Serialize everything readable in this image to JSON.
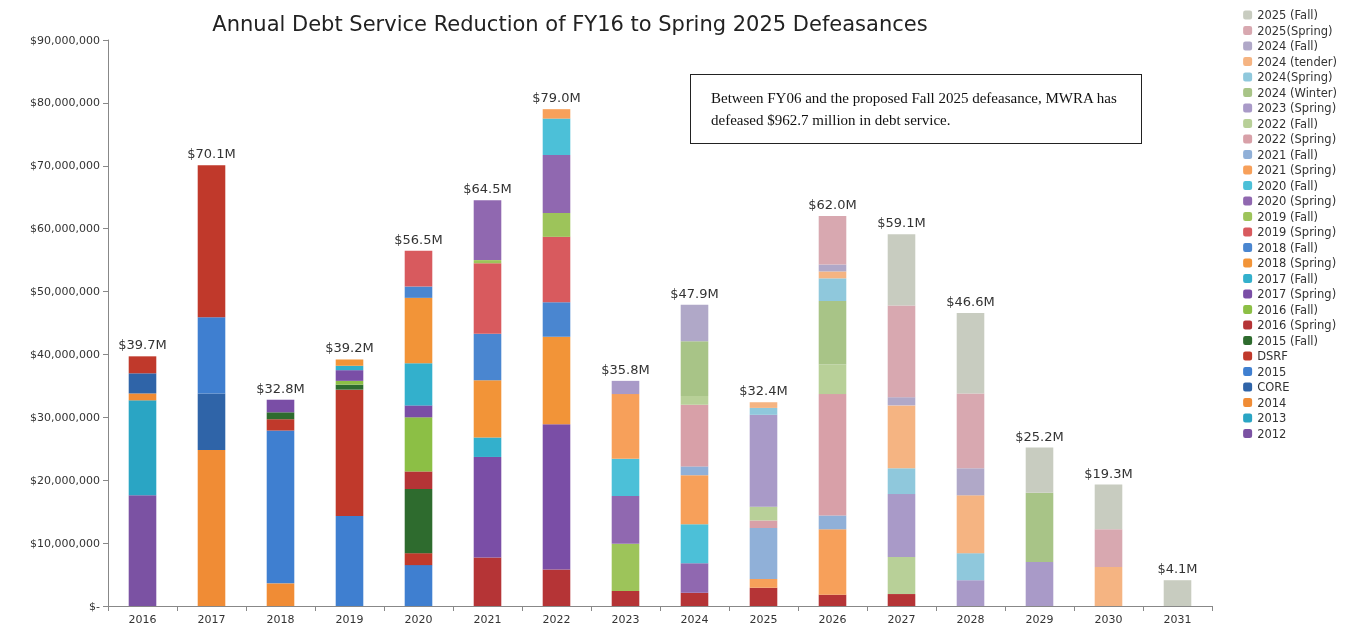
{
  "chart_data": {
    "type": "bar",
    "title": "Annual Debt Service Reduction of FY16 to Spring 2025 Defeasances",
    "categories": [
      "2016",
      "2017",
      "2018",
      "2019",
      "2020",
      "2021",
      "2022",
      "2023",
      "2024",
      "2025",
      "2026",
      "2027",
      "2028",
      "2029",
      "2030",
      "2031"
    ],
    "stacked": true,
    "legend": "right",
    "ylim": [
      0,
      90000000
    ],
    "yticks": [
      {
        "value": 0,
        "label": "$-"
      },
      {
        "value": 10000000,
        "label": "$10,000,000"
      },
      {
        "value": 20000000,
        "label": "$20,000,000"
      },
      {
        "value": 30000000,
        "label": "$30,000,000"
      },
      {
        "value": 40000000,
        "label": "$40,000,000"
      },
      {
        "value": 50000000,
        "label": "$50,000,000"
      },
      {
        "value": 60000000,
        "label": "$60,000,000"
      },
      {
        "value": 70000000,
        "label": "$70,000,000"
      },
      {
        "value": 80000000,
        "label": "$80,000,000"
      },
      {
        "value": 90000000,
        "label": "$90,000,000"
      }
    ],
    "totals": [
      "$39.7M",
      "$70.1M",
      "$32.8M",
      "$39.2M",
      "$56.5M",
      "$64.5M",
      "$79.0M",
      "$35.8M",
      "$47.9M",
      "$32.4M",
      "$62.0M",
      "$59.1M",
      "$46.6M",
      "$25.2M",
      "$19.3M",
      "$4.1M"
    ],
    "annotations": [
      "Between FY06 and  the proposed Fall 2025 defeasance, MWRA  has defeased $962.7 million in debt service."
    ],
    "series": [
      {
        "name": "2012",
        "color": "#7b52a3",
        "values": [
          17600000,
          null,
          null,
          null,
          null,
          null,
          null,
          null,
          null,
          null,
          null,
          null,
          null,
          null,
          null,
          null
        ]
      },
      {
        "name": "2013",
        "color": "#2aa5c4",
        "values": [
          15100000,
          null,
          null,
          null,
          null,
          null,
          null,
          null,
          null,
          null,
          null,
          null,
          null,
          null,
          null,
          null
        ]
      },
      {
        "name": "2014",
        "color": "#f08c35",
        "values": [
          1100000,
          24800000,
          3600000,
          null,
          null,
          null,
          null,
          null,
          null,
          null,
          null,
          null,
          null,
          null,
          null,
          null
        ]
      },
      {
        "name": "CORE",
        "color": "#2f64a8",
        "values": [
          3200000,
          9000000,
          null,
          null,
          null,
          null,
          null,
          null,
          null,
          null,
          null,
          null,
          null,
          null,
          null,
          null
        ]
      },
      {
        "name": "2015",
        "color": "#3f7fd0",
        "values": [
          null,
          12100000,
          24300000,
          14300000,
          6500000,
          null,
          null,
          null,
          null,
          null,
          null,
          null,
          null,
          null,
          null,
          null
        ]
      },
      {
        "name": "DSRF",
        "color": "#c0392b",
        "values": [
          2700000,
          24200000,
          1800000,
          20100000,
          1900000,
          null,
          null,
          null,
          null,
          null,
          null,
          null,
          null,
          null,
          null,
          null
        ]
      },
      {
        "name": "2015 (Fall)",
        "color": "#2e6b2e",
        "values": [
          null,
          null,
          1100000,
          800000,
          10200000,
          null,
          null,
          null,
          null,
          null,
          null,
          null,
          null,
          null,
          null,
          null
        ]
      },
      {
        "name": "2016 (Spring)",
        "color": "#b53436",
        "values": [
          null,
          null,
          null,
          null,
          2800000,
          7700000,
          5800000,
          2400000,
          2100000,
          2900000,
          1800000,
          1900000,
          null,
          null,
          null,
          null
        ]
      },
      {
        "name": "2016 (Fall)",
        "color": "#8cbf45",
        "values": [
          null,
          null,
          null,
          600000,
          8600000,
          null,
          null,
          null,
          null,
          null,
          null,
          null,
          null,
          null,
          null,
          null
        ]
      },
      {
        "name": "2017 (Spring)",
        "color": "#7a4ea6",
        "values": [
          null,
          null,
          2000000,
          1700000,
          1900000,
          16000000,
          23100000,
          null,
          null,
          null,
          null,
          null,
          null,
          null,
          null,
          null
        ]
      },
      {
        "name": "2017 (Fall)",
        "color": "#33b0cc",
        "values": [
          null,
          null,
          null,
          700000,
          6700000,
          3100000,
          null,
          null,
          null,
          null,
          null,
          null,
          null,
          null,
          null,
          null
        ]
      },
      {
        "name": "2018 (Spring)",
        "color": "#f29438",
        "values": [
          null,
          null,
          null,
          1000000,
          10400000,
          9100000,
          13900000,
          null,
          null,
          null,
          null,
          null,
          null,
          null,
          null,
          null
        ]
      },
      {
        "name": "2018 (Fall)",
        "color": "#4a86d0",
        "values": [
          null,
          null,
          null,
          null,
          1800000,
          7400000,
          5500000,
          null,
          null,
          null,
          null,
          null,
          null,
          null,
          null,
          null
        ]
      },
      {
        "name": "2019 (Spring)",
        "color": "#d85a5e",
        "values": [
          null,
          null,
          null,
          null,
          5700000,
          11200000,
          10400000,
          null,
          null,
          null,
          null,
          null,
          null,
          null,
          null,
          null
        ]
      },
      {
        "name": "2019 (Fall)",
        "color": "#9dc45a",
        "values": [
          null,
          null,
          null,
          null,
          null,
          500000,
          3800000,
          7500000,
          null,
          null,
          null,
          null,
          null,
          null,
          null,
          null
        ]
      },
      {
        "name": "2020 (Spring)",
        "color": "#9068b0",
        "values": [
          null,
          null,
          null,
          null,
          null,
          9500000,
          9200000,
          7600000,
          4700000,
          null,
          null,
          null,
          null,
          null,
          null,
          null
        ]
      },
      {
        "name": "2020 (Fall)",
        "color": "#4cc0d8",
        "values": [
          null,
          null,
          null,
          null,
          null,
          null,
          5800000,
          5900000,
          6200000,
          null,
          null,
          null,
          null,
          null,
          null,
          null
        ]
      },
      {
        "name": "2021 (Spring)",
        "color": "#f7a05a",
        "values": [
          null,
          null,
          null,
          null,
          null,
          null,
          1500000,
          10300000,
          7800000,
          1400000,
          10400000,
          null,
          null,
          null,
          null,
          null
        ]
      },
      {
        "name": "2021 (Fall)",
        "color": "#90b0d8",
        "values": [
          null,
          null,
          null,
          null,
          null,
          null,
          null,
          null,
          1400000,
          8100000,
          2200000,
          null,
          null,
          null,
          null,
          null
        ]
      },
      {
        "name": "2022 (Spring)",
        "color": "#d8a0a8",
        "values": [
          null,
          null,
          null,
          null,
          null,
          null,
          null,
          null,
          9800000,
          1200000,
          19300000,
          null,
          null,
          null,
          null,
          null
        ]
      },
      {
        "name": "2022 (Fall)",
        "color": "#b8d098",
        "values": [
          null,
          null,
          null,
          null,
          null,
          null,
          null,
          null,
          1400000,
          2200000,
          4700000,
          5900000,
          null,
          null,
          null,
          null
        ]
      },
      {
        "name": "2023 (Spring)",
        "color": "#a99ac8",
        "values": [
          null,
          null,
          null,
          null,
          null,
          null,
          null,
          2100000,
          null,
          14600000,
          null,
          10000000,
          4100000,
          7000000,
          null,
          null
        ]
      },
      {
        "name": "2024 (Winter)",
        "color": "#a8c487",
        "values": [
          null,
          null,
          null,
          null,
          null,
          null,
          null,
          null,
          8700000,
          null,
          10100000,
          null,
          null,
          11000000,
          null,
          null
        ]
      },
      {
        "name": "2024(Spring)",
        "color": "#8fc8dc",
        "values": [
          null,
          null,
          null,
          null,
          null,
          null,
          null,
          null,
          null,
          1100000,
          3600000,
          4100000,
          4300000,
          null,
          null,
          null
        ]
      },
      {
        "name": "2024 (tender)",
        "color": "#f5b482",
        "values": [
          null,
          null,
          null,
          null,
          null,
          null,
          null,
          null,
          null,
          900000,
          1100000,
          10000000,
          9200000,
          null,
          6200000,
          null
        ]
      },
      {
        "name": "2024 (Fall)",
        "color": "#b0a8c8",
        "values": [
          null,
          null,
          null,
          null,
          null,
          null,
          null,
          null,
          5800000,
          null,
          1100000,
          1300000,
          4300000,
          null,
          null,
          null
        ]
      },
      {
        "name": "2025(Spring)",
        "color": "#d8a8b0",
        "values": [
          null,
          null,
          null,
          null,
          null,
          null,
          null,
          null,
          null,
          null,
          7700000,
          14600000,
          11900000,
          null,
          6000000,
          null
        ]
      },
      {
        "name": "2025 (Fall)",
        "color": "#c8ccc0",
        "values": [
          null,
          null,
          null,
          null,
          null,
          null,
          null,
          null,
          null,
          null,
          null,
          11300000,
          12800000,
          7200000,
          7100000,
          4100000
        ]
      }
    ]
  }
}
